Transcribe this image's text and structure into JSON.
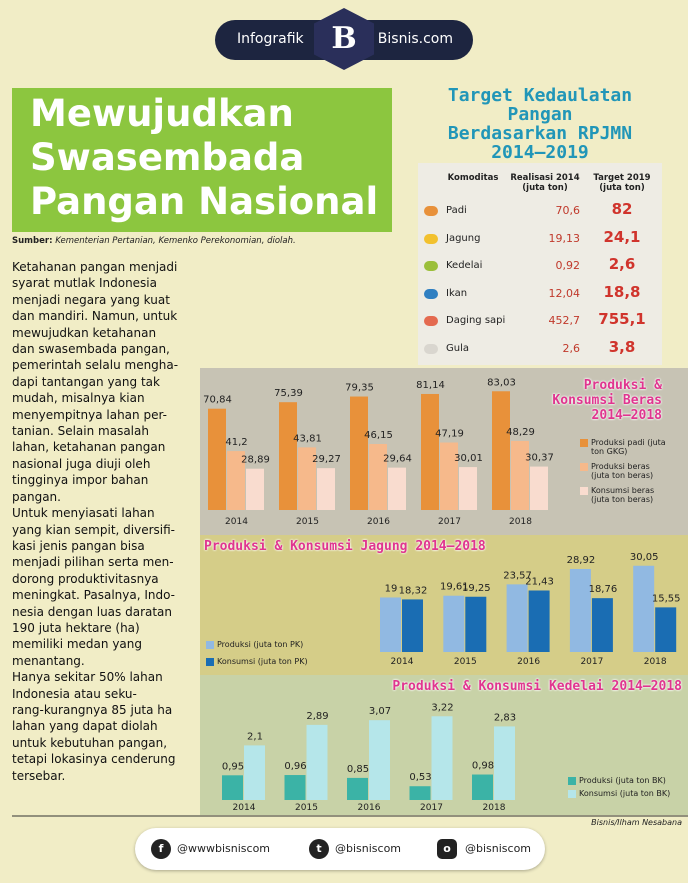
{
  "header": {
    "left_text": "Infografik",
    "logo": "B",
    "right_text": "Bisnis.com"
  },
  "title_lines": [
    "Mewujudkan",
    "Swasembada",
    "Pangan Nasional"
  ],
  "source": {
    "label": "Sumber:",
    "text": "Kementerian Pertanian, Kemenko Perekonomian, diolah."
  },
  "body": {
    "lines": [
      "Ketahanan pangan menjadi",
      "syarat mutlak Indonesia",
      "menjadi negara yang kuat",
      "dan mandiri. Namun, untuk",
      "mewujudkan ketahanan",
      "dan swasembada pangan,",
      "pemerintah selalu mengha-",
      "dapi tantangan yang tak",
      "mudah, misalnya kian",
      "menyempitnya lahan per-",
      "tanian. Selain masalah",
      "lahan, ketahanan pangan",
      "nasional juga diuji oleh",
      "tingginya impor bahan",
      "pangan.",
      "Untuk menyiasati lahan",
      "yang kian sempit, diversifi-",
      "kasi jenis pangan bisa",
      "menjadi pilihan serta men-",
      "dorong produktivitasnya",
      "meningkat. Pasalnya, Indo-",
      "nesia dengan luas daratan",
      "190 juta hektare (ha)",
      "memiliki medan yang",
      "menantang.",
      "Hanya sekitar 50% lahan",
      "Indonesia atau seku-",
      "rang-kurangnya 85 juta ha",
      "lahan yang dapat diolah",
      "untuk kebutuhan pangan,",
      "tetapi lokasinya cenderung",
      "tersebar."
    ]
  },
  "table": {
    "title_lines": [
      "Target Kedaulatan Pangan",
      "Berdasarkan RPJMN",
      "2014–2019"
    ],
    "header": [
      "Komoditas",
      "Realisasi 2014 (juta ton)",
      "Target 2019 (juta ton)"
    ],
    "rows": [
      [
        "Padi",
        "70,6",
        "82"
      ],
      [
        "Jagung",
        "19,13",
        "24,1"
      ],
      [
        "Kedelai",
        "0,92",
        "2,6"
      ],
      [
        "Ikan",
        "12,04",
        "18,8"
      ],
      [
        "Daging sapi",
        "452,7",
        "755,1"
      ],
      [
        "Gula",
        "2,6",
        "3,8"
      ]
    ]
  },
  "chart_data": [
    {
      "type": "bar",
      "title": "Produksi & Konsumsi Beras 2014–2018",
      "categories": [
        "2014",
        "2015",
        "2016",
        "2017",
        "2018"
      ],
      "series": [
        {
          "name": "Produksi padi (juta ton GKG)",
          "color": "#e8913a",
          "values": [
            70.84,
            75.39,
            79.35,
            81.14,
            83.03
          ],
          "value_labels": [
            "70,84",
            "75,39",
            "79,35",
            "81,14",
            "83,03"
          ]
        },
        {
          "name": "Produksi beras (juta ton beras)",
          "color": "#f6b98b",
          "values": [
            41.2,
            43.81,
            46.15,
            47.19,
            48.29
          ],
          "value_labels": [
            "41,2",
            "43,81",
            "46,15",
            "47,19",
            "48,29"
          ]
        },
        {
          "name": "Konsumsi beras (juta ton beras)",
          "color": "#f9dccf",
          "values": [
            28.89,
            29.27,
            29.64,
            30.01,
            30.37
          ],
          "value_labels": [
            "28,89",
            "29,27",
            "29,64",
            "30,01",
            "30,37"
          ]
        }
      ]
    },
    {
      "type": "bar",
      "title": "Produksi & Konsumsi Jagung 2014–2018",
      "categories": [
        "2014",
        "2015",
        "2016",
        "2017",
        "2018"
      ],
      "series": [
        {
          "name": "Produksi (juta ton PK)",
          "color": "#91b9e2",
          "values": [
            19,
            19.61,
            23.57,
            28.92,
            30.05
          ],
          "value_labels": [
            "19",
            "19,61",
            "23,57",
            "28,92",
            "30,05"
          ]
        },
        {
          "name": "Konsumsi (juta ton PK)",
          "color": "#1a6db3",
          "values": [
            18.32,
            19.25,
            21.43,
            18.76,
            15.55
          ],
          "value_labels": [
            "18,32",
            "19,25",
            "21,43",
            "18,76",
            "15,55"
          ]
        }
      ]
    },
    {
      "type": "bar",
      "title": "Produksi & Konsumsi Kedelai 2014–2018",
      "categories": [
        "2014",
        "2015",
        "2016",
        "2017",
        "2018"
      ],
      "series": [
        {
          "name": "Produksi (juta ton BK)",
          "color": "#3bb3a6",
          "values": [
            0.95,
            0.96,
            0.85,
            0.53,
            0.98
          ],
          "value_labels": [
            "0,95",
            "0,96",
            "0,85",
            "0,53",
            "0,98"
          ]
        },
        {
          "name": "Konsumsi (juta ton BK)",
          "color": "#b5e6ea",
          "values": [
            2.1,
            2.89,
            3.07,
            3.22,
            2.83
          ],
          "value_labels": [
            "2,1",
            "2,89",
            "3,07",
            "3,22",
            "2,83"
          ]
        }
      ]
    }
  ],
  "footer": {
    "facebook": "@wwwbisniscom",
    "twitter": "@bisniscom",
    "instagram": "@bisniscom",
    "credit": "Bisnis/Ilham Nesabana"
  }
}
